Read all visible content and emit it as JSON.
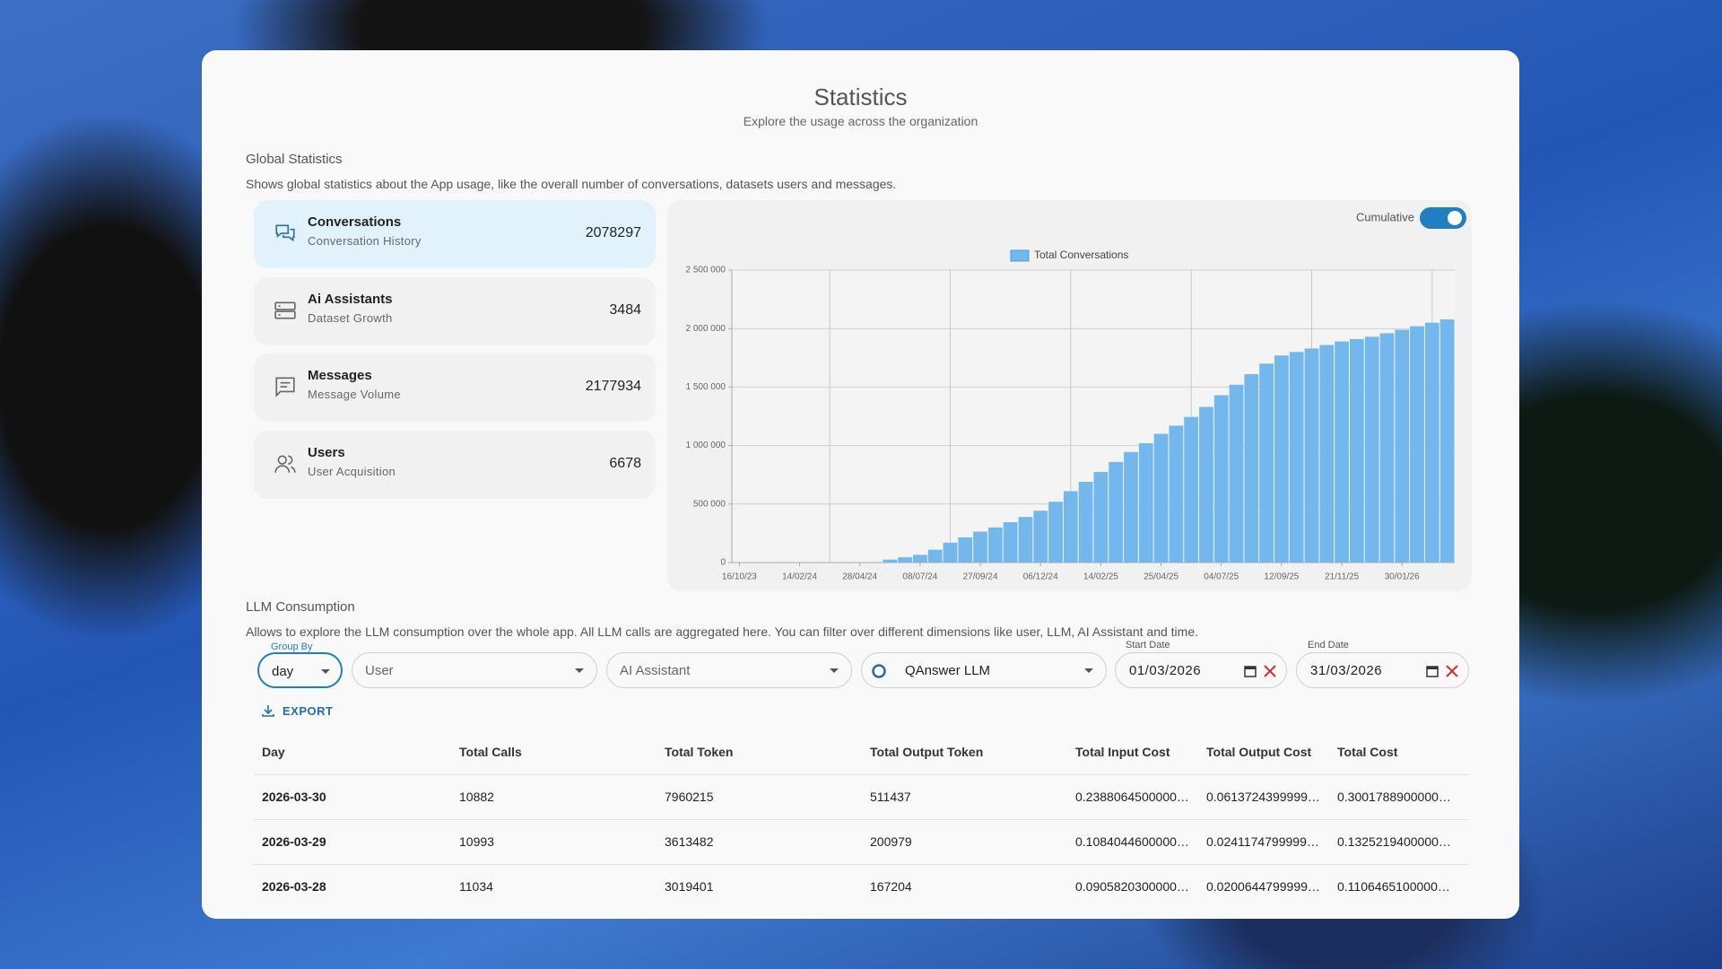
{
  "header": {
    "title": "Statistics",
    "subtitle": "Explore the usage across the organization"
  },
  "global_statistics": {
    "title": "Global Statistics",
    "description": "Shows global statistics about the App usage, like the overall number of conversations, datasets users and messages.",
    "cards": [
      {
        "title": "Conversations",
        "subtitle": "Conversation History",
        "value": 2078297
      },
      {
        "title": "Ai Assistants",
        "subtitle": "Dataset Growth",
        "value": 3484
      },
      {
        "title": "Messages",
        "subtitle": "Message Volume",
        "value": 2177934
      },
      {
        "title": "Users",
        "subtitle": "User Acquisition",
        "value": 6678
      }
    ]
  },
  "chart_data": {
    "type": "bar",
    "toggle_label": "Cumulative",
    "categories": [
      "16/10/23",
      null,
      null,
      null,
      "14/02/24",
      null,
      null,
      null,
      "28/04/24",
      null,
      null,
      null,
      "08/07/24",
      null,
      null,
      null,
      "27/09/24",
      null,
      null,
      null,
      "06/12/24",
      null,
      null,
      null,
      "14/02/25",
      null,
      null,
      null,
      "25/04/25",
      null,
      null,
      null,
      "04/07/25",
      null,
      null,
      null,
      "12/09/25",
      null,
      null,
      null,
      "21/11/25",
      null,
      null,
      null,
      "30/01/26",
      null,
      null,
      null
    ],
    "series": [
      {
        "name": "Total Conversations",
        "color": "#74b7ec",
        "values": [
          0,
          0,
          0,
          0,
          0,
          0,
          0,
          0,
          0,
          3000,
          25000,
          45000,
          66000,
          110000,
          170000,
          215000,
          264000,
          300000,
          345000,
          390000,
          443000,
          520000,
          610000,
          690000,
          774000,
          860000,
          945000,
          1020000,
          1100000,
          1170000,
          1245000,
          1330000,
          1430000,
          1520000,
          1610000,
          1700000,
          1770000,
          1800000,
          1830000,
          1860000,
          1890000,
          1910000,
          1930000,
          1960000,
          1990000,
          2020000,
          2050000,
          2078297
        ]
      }
    ],
    "ylim": [
      0,
      2500000
    ],
    "yticks": [
      0,
      {
        "value": 500000,
        "label": "500 000"
      },
      {
        "value": 1000000,
        "label": "1 000 000"
      },
      {
        "value": 1500000,
        "label": "1 500 000"
      },
      {
        "value": 2000000,
        "label": "2 000 000"
      },
      {
        "value": 2500000,
        "label": "2 500 000"
      }
    ],
    "grid": true,
    "legend": "top"
  },
  "llm_consumption": {
    "title": "LLM Consumption",
    "description": "Allows to explore the LLM consumption over the whole app. All LLM calls are aggregated here. You can filter over different dimensions like user, LLM, AI Assistant and time.",
    "filters": {
      "group_by_label": "Group By",
      "group_by": "day",
      "user": "User",
      "ai_assistant": "AI Assistant",
      "llm": "QAnswer LLM",
      "start_date_label": "Start Date",
      "start_date": "01/03/2026",
      "end_date_label": "End Date",
      "end_date": "31/03/2026"
    },
    "export": "EXPORT",
    "table": {
      "columns": [
        "Day",
        "Total Calls",
        "Total Token",
        "Total Output Token",
        "Total Input Cost",
        "Total Output Cost",
        "Total Cost"
      ],
      "rows": [
        [
          "2026-03-30",
          10882,
          7960215,
          511437,
          "0.2388064500000…",
          "0.0613724399999…",
          "0.3001788900000…"
        ],
        [
          "2026-03-29",
          10993,
          3613482,
          200979,
          "0.1084044600000…",
          "0.0241174799999…",
          "0.1325219400000…"
        ],
        [
          "2026-03-28",
          11034,
          3019401,
          167204,
          "0.0905820300000…",
          "0.0200644799999…",
          "0.1106465100000…"
        ]
      ]
    }
  }
}
